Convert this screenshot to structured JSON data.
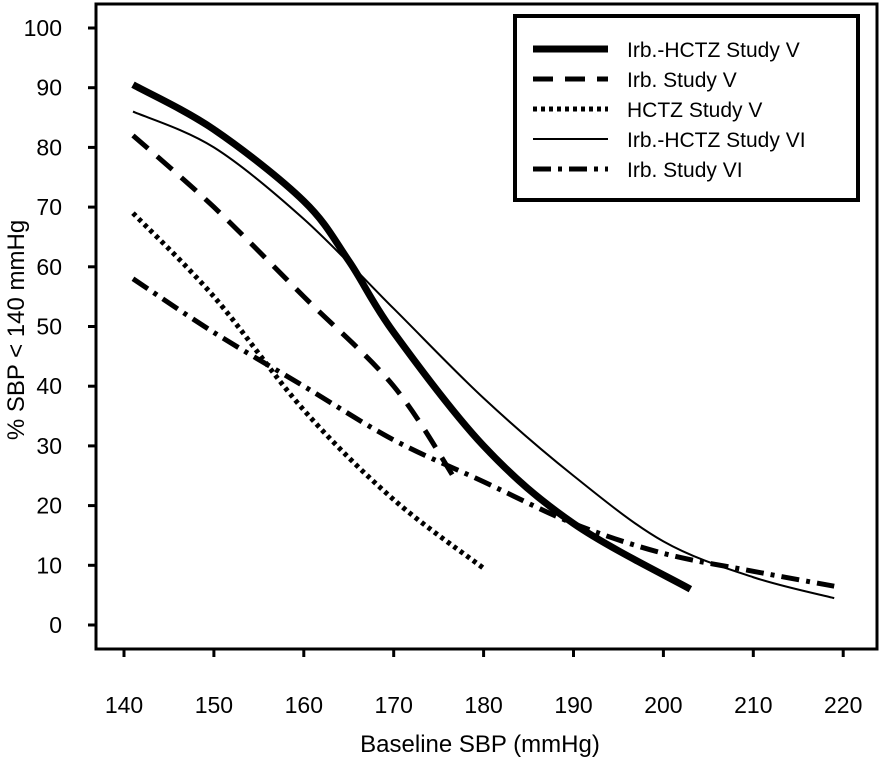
{
  "chart_data": {
    "type": "line",
    "title": "",
    "xlabel": "Baseline SBP (mmHg)",
    "ylabel": "% SBP < 140 mmHg",
    "xlim": [
      137,
      222
    ],
    "ylim": [
      -4,
      105
    ],
    "xticks": [
      140,
      150,
      160,
      170,
      180,
      190,
      200,
      210,
      220
    ],
    "yticks": [
      0,
      10,
      20,
      30,
      40,
      50,
      60,
      70,
      80,
      90,
      100
    ],
    "grid": false,
    "legend_position": "top-right",
    "series": [
      {
        "name": "Irb.-HCTZ Study V",
        "style": "thick-solid",
        "x": [
          141,
          150,
          160,
          165,
          170,
          180,
          190,
          203
        ],
        "y": [
          90.5,
          83,
          71,
          61,
          49,
          30,
          17,
          6
        ]
      },
      {
        "name": "Irb. Study V",
        "style": "dashed",
        "x": [
          141,
          150,
          160,
          170,
          177
        ],
        "y": [
          82,
          70,
          55,
          40,
          24
        ]
      },
      {
        "name": "HCTZ Study V",
        "style": "dotted",
        "x": [
          141,
          150,
          160,
          170,
          180
        ],
        "y": [
          69,
          55,
          36,
          21,
          9.5
        ]
      },
      {
        "name": "Irb.-HCTZ Study VI",
        "style": "thin-solid",
        "x": [
          141,
          150,
          160,
          170,
          180,
          190,
          200,
          210,
          219
        ],
        "y": [
          86,
          80,
          68,
          53,
          38,
          25,
          14,
          8,
          4.5
        ]
      },
      {
        "name": "Irb. Study VI",
        "style": "dash-dot",
        "x": [
          141,
          150,
          160,
          170,
          180,
          190,
          200,
          210,
          219
        ],
        "y": [
          58,
          49,
          40,
          31,
          24,
          17,
          12,
          9,
          6.5
        ]
      }
    ]
  }
}
